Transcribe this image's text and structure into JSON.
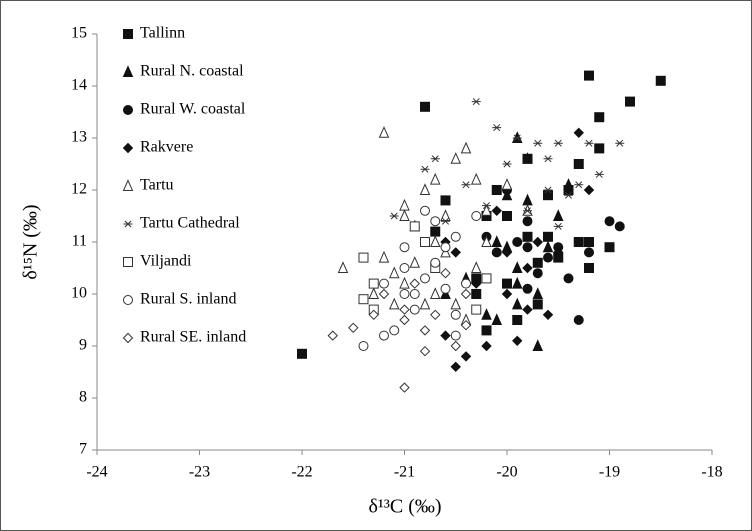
{
  "chart_data": {
    "type": "scatter",
    "xlabel": "δ¹³C (‰)",
    "ylabel": "δ¹⁵N (‰)",
    "xlim": [
      -24,
      -18
    ],
    "xticks": [
      -24,
      -23,
      -22,
      -21,
      -20,
      -19,
      -18
    ],
    "ylim": [
      7,
      15
    ],
    "yticks": [
      7,
      8,
      9,
      10,
      11,
      12,
      13,
      14,
      15
    ],
    "legend": "upper left",
    "series": [
      {
        "name": "Tallinn",
        "marker": "square",
        "filled": true,
        "color": "#111111",
        "x": [
          -22.0,
          -20.8,
          -19.2,
          -18.5,
          -18.8,
          -19.1,
          -19.1,
          -19.3,
          -19.8,
          -20.1,
          -20.0,
          -19.6,
          -19.2,
          -19.0,
          -20.2,
          -20.3,
          -20.0,
          -19.7,
          -20.2,
          -19.7,
          -19.2,
          -19.4,
          -19.3,
          -20.6,
          -20.3,
          -19.9,
          -19.6,
          -20.7,
          -19.8,
          -19.5
        ],
        "y": [
          8.85,
          13.6,
          14.2,
          14.1,
          13.7,
          13.4,
          12.8,
          12.5,
          12.6,
          12.0,
          11.5,
          11.9,
          11.0,
          10.9,
          11.5,
          10.3,
          10.2,
          10.6,
          9.3,
          9.8,
          10.5,
          12.0,
          11.0,
          11.8,
          10.0,
          9.5,
          11.1,
          11.2,
          11.1,
          10.7
        ]
      },
      {
        "name": "Rural N. coastal",
        "marker": "triangle",
        "filled": true,
        "color": "#111111",
        "x": [
          -19.9,
          -19.8,
          -20.0,
          -19.8,
          -19.5,
          -19.4,
          -20.1,
          -19.9,
          -19.7,
          -19.9,
          -20.2,
          -19.7,
          -20.4,
          -20.0,
          -19.6,
          -20.6,
          -20.1,
          -19.9
        ],
        "y": [
          13.0,
          12.6,
          11.9,
          11.8,
          11.5,
          12.1,
          11.0,
          10.5,
          10.0,
          9.8,
          9.6,
          9.0,
          10.3,
          10.9,
          10.9,
          10.0,
          9.5,
          10.2
        ]
      },
      {
        "name": "Rural W. coastal",
        "marker": "circle",
        "filled": true,
        "color": "#111111",
        "x": [
          -20.0,
          -19.8,
          -18.9,
          -19.0,
          -19.5,
          -19.8,
          -19.7,
          -19.4,
          -19.3,
          -20.1,
          -19.9,
          -19.6,
          -19.2,
          -20.2,
          -19.8
        ],
        "y": [
          12.0,
          11.4,
          11.3,
          11.4,
          10.9,
          10.9,
          10.4,
          10.3,
          9.5,
          10.8,
          11.0,
          10.7,
          10.8,
          11.1,
          10.1
        ]
      },
      {
        "name": "Rakvere",
        "marker": "diamond",
        "filled": true,
        "color": "#111111",
        "x": [
          -19.3,
          -19.2,
          -20.1,
          -20.0,
          -19.7,
          -19.8,
          -20.3,
          -20.0,
          -19.8,
          -20.2,
          -20.5,
          -20.4,
          -20.6,
          -19.6,
          -20.5,
          -20.6,
          -19.9,
          -19.5
        ],
        "y": [
          13.1,
          12.0,
          11.6,
          10.8,
          11.0,
          10.5,
          10.2,
          10.0,
          9.7,
          9.0,
          8.6,
          8.8,
          9.2,
          9.6,
          10.8,
          11.0,
          9.1,
          10.8
        ]
      },
      {
        "name": "Tartu",
        "marker": "triangle",
        "filled": false,
        "color": "#333333",
        "x": [
          -21.2,
          -21.6,
          -20.4,
          -20.5,
          -20.7,
          -20.8,
          -21.0,
          -21.0,
          -20.9,
          -20.7,
          -20.6,
          -20.9,
          -21.1,
          -21.2,
          -21.3,
          -20.7,
          -20.5,
          -20.3,
          -20.2,
          -20.0,
          -19.8,
          -20.8,
          -21.0,
          -20.4,
          -20.6,
          -21.1,
          -20.3,
          -20.2
        ],
        "y": [
          13.1,
          10.5,
          12.8,
          12.6,
          12.2,
          12.0,
          11.7,
          11.5,
          11.3,
          11.0,
          10.8,
          10.6,
          10.4,
          10.7,
          10.0,
          10.0,
          9.8,
          10.5,
          11.6,
          12.1,
          11.6,
          9.8,
          10.2,
          9.5,
          11.5,
          9.8,
          12.2,
          11.0
        ]
      },
      {
        "name": "Tartu Cathedral",
        "marker": "asterisk",
        "filled": false,
        "color": "#333333",
        "x": [
          -20.3,
          -20.1,
          -19.9,
          -19.7,
          -19.5,
          -19.2,
          -18.9,
          -19.6,
          -20.0,
          -20.7,
          -20.4,
          -19.3,
          -19.1,
          -19.4,
          -19.5,
          -19.8,
          -20.6,
          -21.1,
          -20.2,
          -19.6,
          -20.8
        ],
        "y": [
          13.7,
          13.2,
          13.0,
          12.9,
          12.9,
          12.9,
          12.9,
          12.6,
          12.5,
          12.6,
          12.1,
          12.1,
          12.3,
          11.9,
          11.3,
          11.6,
          11.4,
          11.5,
          11.7,
          12.0,
          12.4
        ]
      },
      {
        "name": "Viljandi",
        "marker": "square",
        "filled": false,
        "color": "#333333",
        "x": [
          -21.4,
          -21.3,
          -20.9,
          -20.8,
          -20.7,
          -21.4,
          -20.3,
          -20.2,
          -21.3
        ],
        "y": [
          10.7,
          10.2,
          11.3,
          11.0,
          10.5,
          9.9,
          9.7,
          10.3,
          9.7
        ]
      },
      {
        "name": "Rural S. inland",
        "marker": "circle",
        "filled": false,
        "color": "#333333",
        "x": [
          -21.4,
          -21.2,
          -21.1,
          -21.2,
          -21.0,
          -21.0,
          -20.9,
          -20.8,
          -20.7,
          -20.6,
          -20.7,
          -20.5,
          -20.6,
          -20.5,
          -20.3,
          -20.4,
          -20.9,
          -21.0,
          -20.8,
          -20.5
        ],
        "y": [
          9.0,
          9.2,
          9.3,
          10.2,
          10.9,
          10.5,
          10.0,
          10.3,
          10.6,
          10.9,
          11.4,
          11.1,
          10.1,
          9.6,
          11.5,
          10.2,
          9.7,
          10.0,
          11.6,
          9.2
        ]
      },
      {
        "name": "Rural SE. inland",
        "marker": "diamond",
        "filled": false,
        "color": "#333333",
        "x": [
          -21.7,
          -21.5,
          -21.3,
          -21.0,
          -20.8,
          -20.5,
          -20.8,
          -21.0,
          -21.2,
          -20.9,
          -20.6,
          -20.4,
          -20.7,
          -21.0,
          -20.4
        ],
        "y": [
          9.2,
          9.35,
          9.6,
          8.2,
          8.9,
          9.0,
          9.3,
          9.7,
          10.0,
          10.2,
          10.4,
          10.0,
          9.6,
          9.5,
          9.4
        ]
      }
    ]
  }
}
